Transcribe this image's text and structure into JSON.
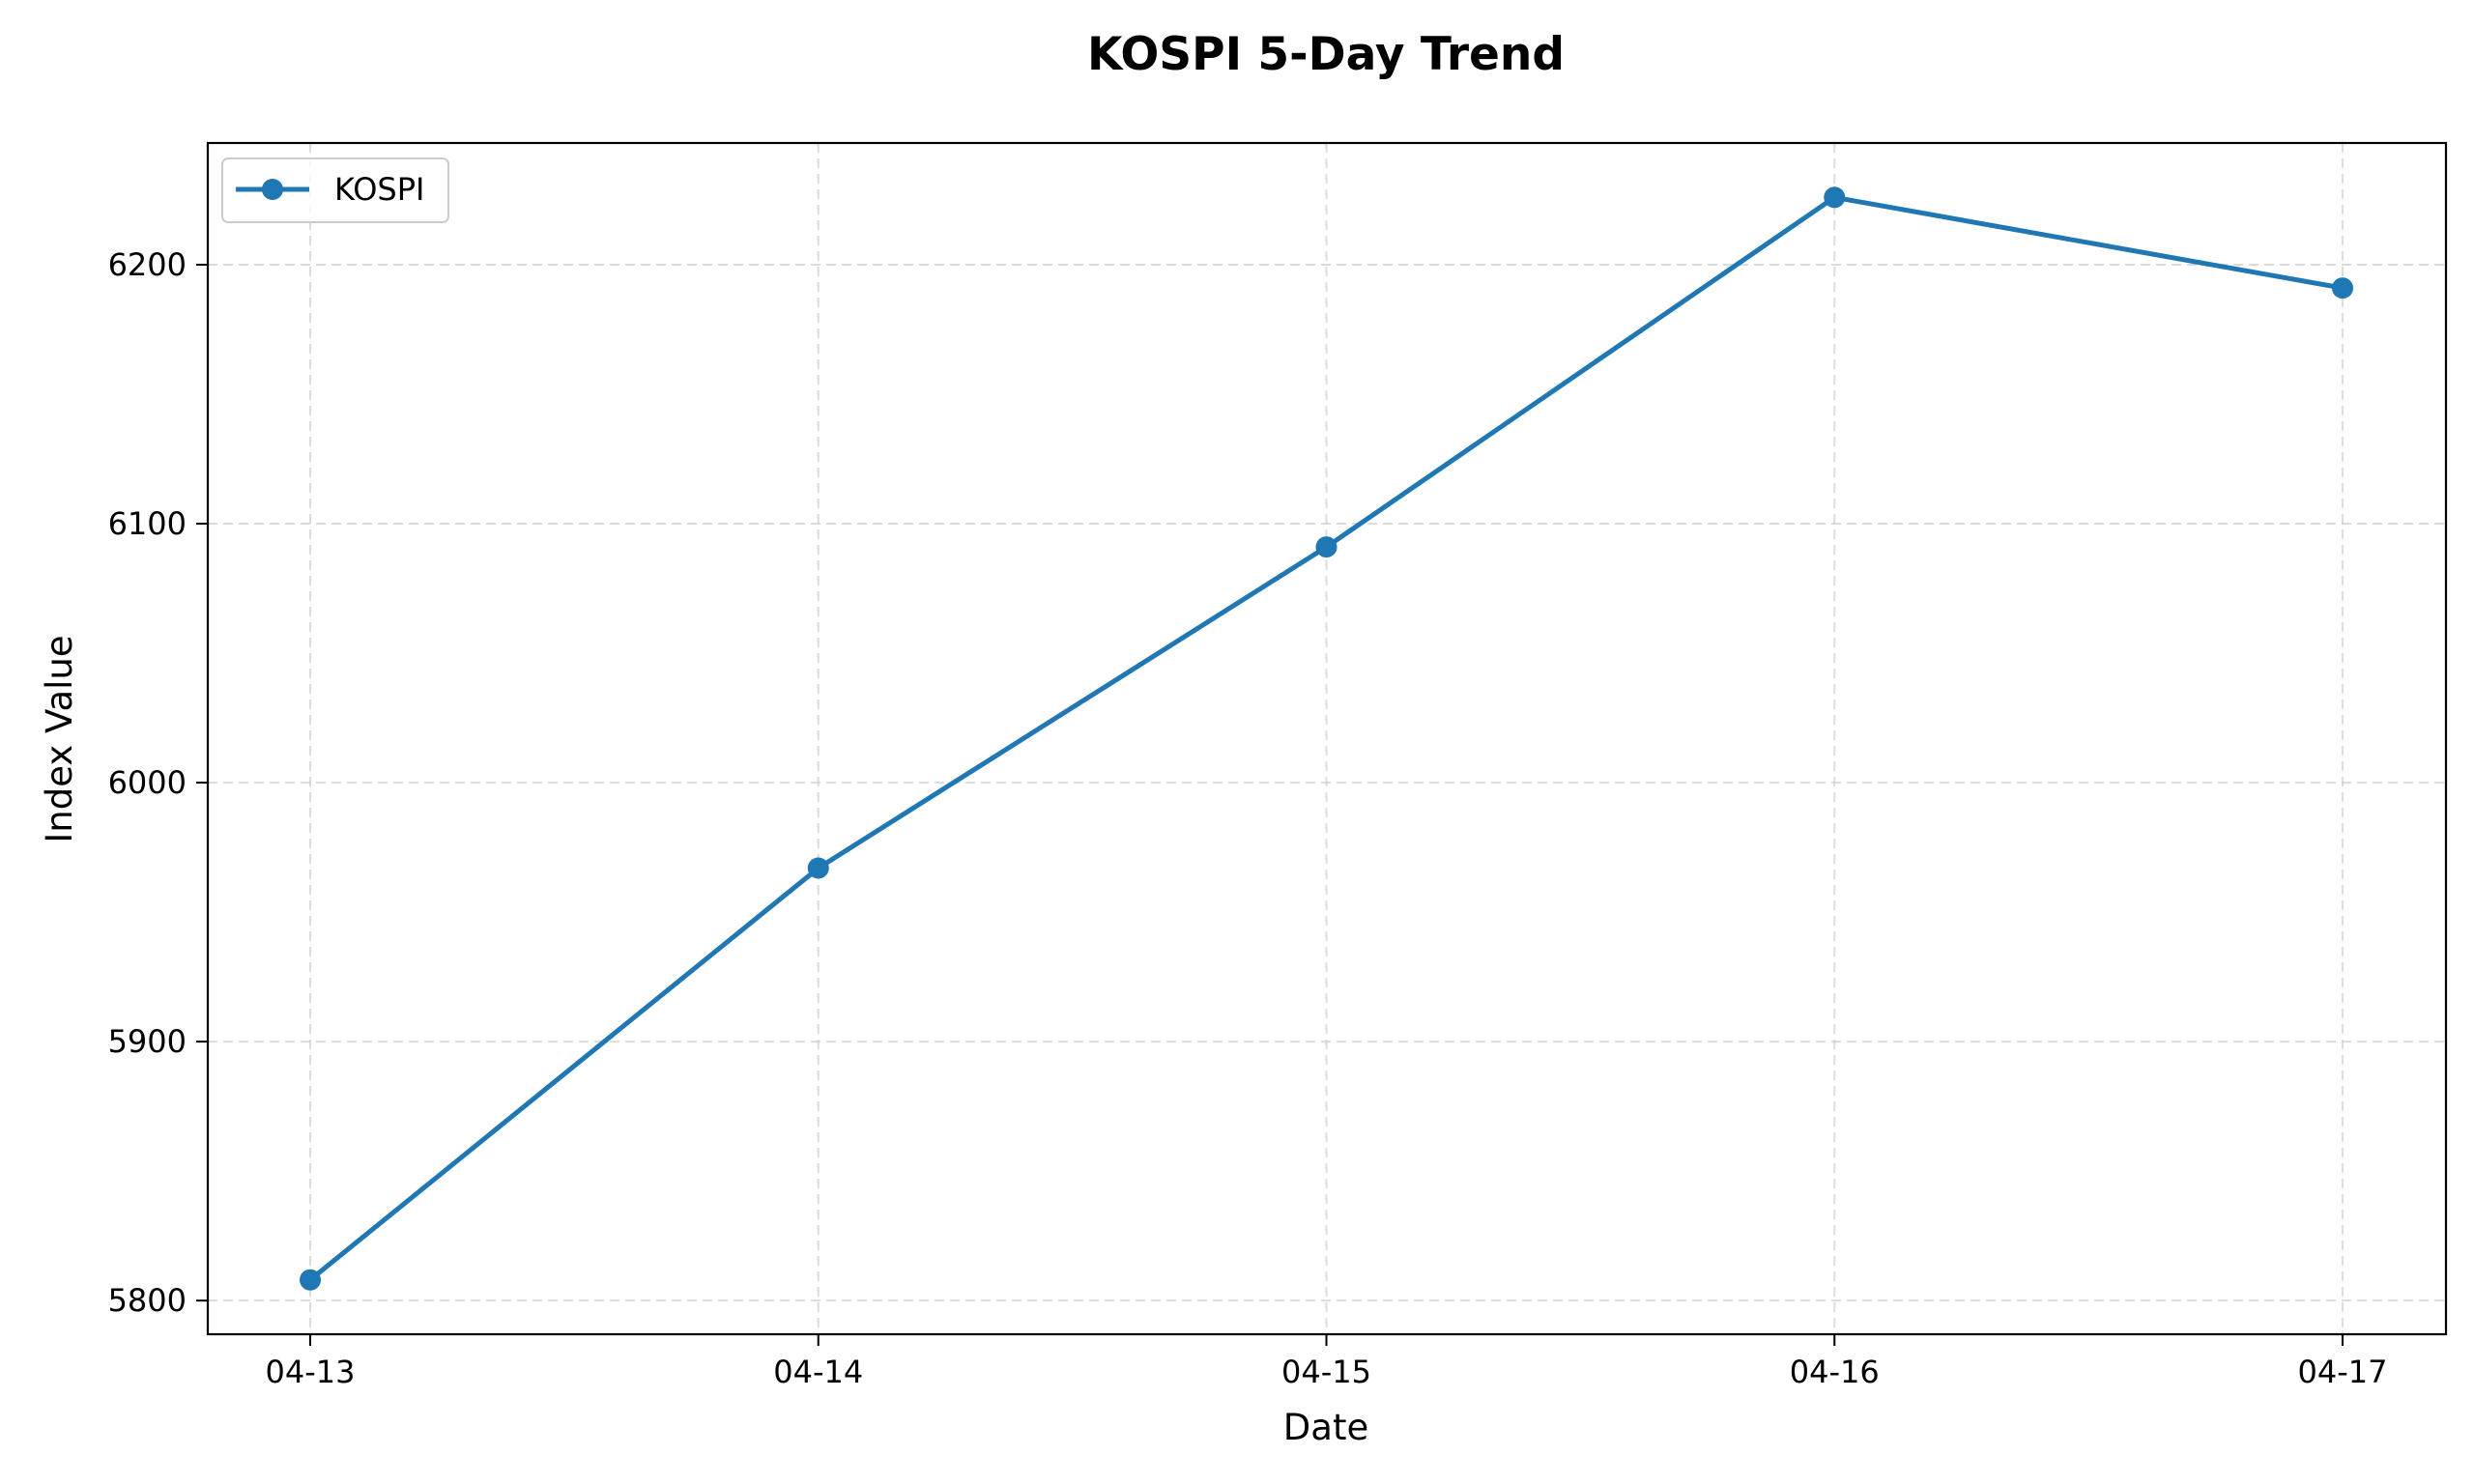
{
  "chart_data": {
    "type": "line",
    "title": "KOSPI 5-Day Trend",
    "xlabel": "Date",
    "ylabel": "Index Value",
    "x": [
      "04-13",
      "04-14",
      "04-15",
      "04-16",
      "04-17"
    ],
    "series": [
      {
        "name": "KOSPI",
        "values": [
          5808,
          5967,
          6091,
          6226,
          6191
        ],
        "color": "#1f77b4",
        "marker": "circle"
      }
    ],
    "yticks": [
      5800,
      5900,
      6000,
      6100,
      6200
    ],
    "ylim": [
      5787,
      6247
    ],
    "grid": true,
    "legend": "top-left"
  }
}
